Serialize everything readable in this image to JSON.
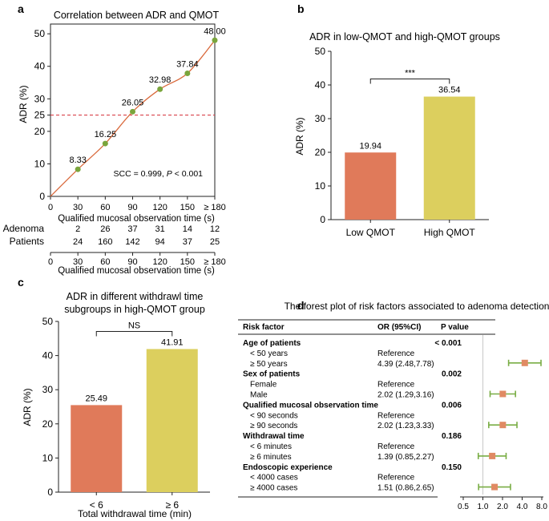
{
  "colors": {
    "line": "#d9683a",
    "point": "#7aa53c",
    "ref_line": "#d9434b",
    "bar_low": "#e07a5a",
    "bar_high": "#dccf5e",
    "forest_square": "#e08a63",
    "forest_ci": "#79ad44",
    "axis": "#222222"
  },
  "panels": {
    "a": "a",
    "b": "b",
    "c": "c",
    "d": "d"
  },
  "chart_data": [
    {
      "id": "a",
      "type": "line",
      "title": "Correlation between ADR and QMOT",
      "xlabel": "Qualified mucosal observation time (s)",
      "ylabel": "ADR (%)",
      "x": [
        "30",
        "60",
        "90",
        "120",
        "150",
        "≥ 180"
      ],
      "values": [
        8.33,
        16.25,
        26.05,
        32.98,
        37.84,
        48.0
      ],
      "labels": [
        "8.33",
        "16.25",
        "26.05",
        "32.98",
        "37.84",
        "48.00"
      ],
      "x_ticks": [
        "0",
        "30",
        "60",
        "90",
        "120",
        "150",
        "≥ 180"
      ],
      "y_ticks": [
        0,
        10,
        20,
        25,
        30,
        40,
        50
      ],
      "ylim": [
        0,
        53
      ],
      "reference_y": 25,
      "annotation_prefix": "SCC = 0.999, ",
      "annotation_p": "P",
      "annotation_suffix": " < 0.001",
      "table": {
        "rows": [
          {
            "label": "Adenoma",
            "values": [
              "2",
              "26",
              "37",
              "31",
              "14",
              "12"
            ]
          },
          {
            "label": "Patients",
            "values": [
              "24",
              "160",
              "142",
              "94",
              "37",
              "25"
            ]
          }
        ],
        "x_ticks": [
          "0",
          "30",
          "60",
          "90",
          "120",
          "150",
          "≥ 180"
        ],
        "xlabel": "Qualified mucosal observation time (s)"
      }
    },
    {
      "id": "b",
      "type": "bar",
      "title": "ADR in low-QMOT and high-QMOT groups",
      "categories": [
        "Low QMOT",
        "High QMOT"
      ],
      "values": [
        19.94,
        36.54
      ],
      "labels": [
        "19.94",
        "36.54"
      ],
      "ylabel": "ADR (%)",
      "ylim": [
        0,
        50
      ],
      "y_ticks": [
        0,
        10,
        20,
        30,
        40,
        50
      ],
      "significance": "***"
    },
    {
      "id": "c",
      "type": "bar",
      "title_lines": [
        "ADR in different withdrawl time",
        "subgroups in high-QMOT group"
      ],
      "categories": [
        "< 6",
        "≥ 6"
      ],
      "values": [
        25.49,
        41.91
      ],
      "labels": [
        "25.49",
        "41.91"
      ],
      "ylabel": "ADR (%)",
      "xlabel": "Total withdrawal time (min)",
      "ylim": [
        0,
        50
      ],
      "y_ticks": [
        0,
        10,
        20,
        30,
        40,
        50
      ],
      "significance": "NS"
    },
    {
      "id": "d",
      "type": "forest",
      "title": "The forest plot of risk factors associated to adenoma detection",
      "headers": {
        "factor": "Risk factor",
        "or": "OR (95%CI)",
        "p": "P value"
      },
      "x_ticks": [
        0.5,
        1.0,
        2.0,
        4.0,
        8.0
      ],
      "x_tick_labels": [
        "0.5",
        "1.0",
        "2.0",
        "4.0",
        "8.0"
      ],
      "xlim": [
        0.5,
        8.0
      ],
      "reference_x": 1.0,
      "rows": [
        {
          "kind": "group",
          "label": "Age of patients",
          "p": "< 0.001"
        },
        {
          "kind": "item",
          "label": "< 50 years",
          "or": "Reference"
        },
        {
          "kind": "item",
          "label": "≥ 50 years",
          "or": "4.39 (2.48,7.78)",
          "est": 4.39,
          "lo": 2.48,
          "hi": 7.78
        },
        {
          "kind": "group",
          "label": "Sex of patients",
          "p": "0.002"
        },
        {
          "kind": "item",
          "label": "Female",
          "or": "Reference"
        },
        {
          "kind": "item",
          "label": "Male",
          "or": "2.02 (1.29,3.16)",
          "est": 2.02,
          "lo": 1.29,
          "hi": 3.16
        },
        {
          "kind": "group",
          "label": "Qualified mucosal observation time",
          "p": "0.006"
        },
        {
          "kind": "item",
          "label": "< 90 seconds",
          "or": "Reference"
        },
        {
          "kind": "item",
          "label": "≥ 90 seconds",
          "or": "2.02 (1.23,3.33)",
          "est": 2.02,
          "lo": 1.23,
          "hi": 3.33
        },
        {
          "kind": "group",
          "label": "Withdrawal time",
          "p": "0.186"
        },
        {
          "kind": "item",
          "label": "< 6 minutes",
          "or": "Reference"
        },
        {
          "kind": "item",
          "label": "≥ 6 minutes",
          "or": "1.39 (0.85,2.27)",
          "est": 1.39,
          "lo": 0.85,
          "hi": 2.27
        },
        {
          "kind": "group",
          "label": "Endoscopic experience",
          "p": "0.150"
        },
        {
          "kind": "item",
          "label": "< 4000 cases",
          "or": "Reference"
        },
        {
          "kind": "item",
          "label": "≥ 4000 cases",
          "or": "1.51 (0.86,2.65)",
          "est": 1.51,
          "lo": 0.86,
          "hi": 2.65
        }
      ]
    }
  ]
}
